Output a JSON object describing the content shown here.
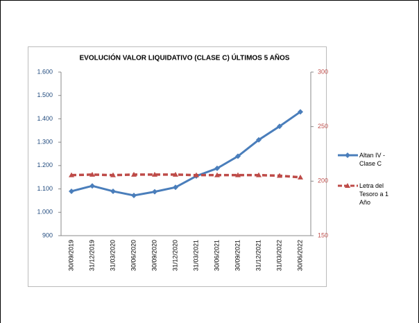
{
  "chart_data": {
    "type": "line",
    "title": "EVOLUCIÓN VALOR LIQUIDATIVO (CLASE C) ÚLTIMOS 5 AÑOS",
    "categories": [
      "30/09/2019",
      "31/12/2019",
      "31/03/2020",
      "30/06/2020",
      "30/09/2020",
      "31/12/2020",
      "31/03/2021",
      "30/06/2021",
      "30/09/2021",
      "31/12/2021",
      "31/03/2022",
      "30/06/2022"
    ],
    "series": [
      {
        "name": "Altan IV - Clase C",
        "color": "#4a7ebb",
        "values": [
          1090,
          1113,
          1090,
          1072,
          1088,
          1107,
          1155,
          1188,
          1240,
          1310,
          1368,
          1430
        ]
      },
      {
        "name": "Letra del Tesoro a 1 Año",
        "color": "#be4b48",
        "axis": "y2",
        "values": [
          205.5,
          206,
          205.5,
          206,
          206,
          206,
          205.5,
          205.5,
          205.5,
          205.5,
          205,
          203.5
        ]
      }
    ],
    "ylim": [
      900,
      1600
    ],
    "yticks": [
      {
        "value": 900,
        "label": "900"
      },
      {
        "value": 1000,
        "label": "1.000"
      },
      {
        "value": 1100,
        "label": "1.100"
      },
      {
        "value": 1200,
        "label": "1.200"
      },
      {
        "value": 1300,
        "label": "1.300"
      },
      {
        "value": 1400,
        "label": "1.400"
      },
      {
        "value": 1500,
        "label": "1.500"
      },
      {
        "value": 1600,
        "label": "1.600"
      }
    ],
    "y2lim": [
      150,
      300
    ],
    "y2ticks": [
      150,
      200,
      250,
      300
    ]
  }
}
